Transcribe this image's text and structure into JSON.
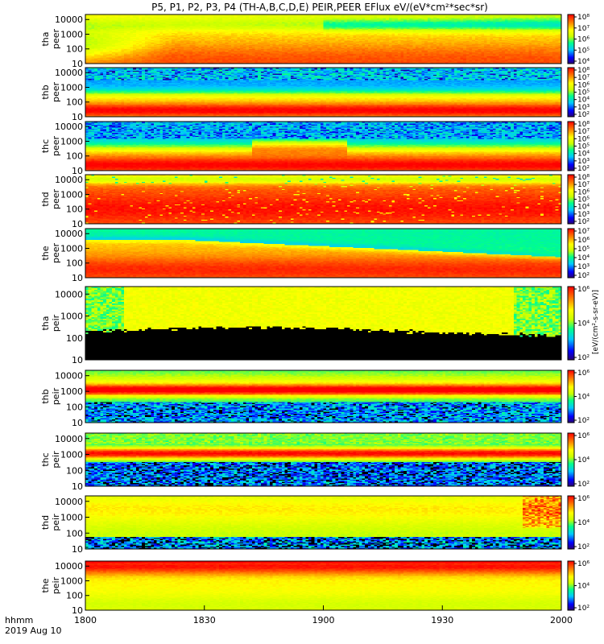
{
  "chart_data": {
    "type": "heatmap",
    "title": "P5, P1, P2, P3, P4 (TH-A,B,C,D,E) PEIR,PEER EFlux eV/(eV*cm²*sec*sr)",
    "x_labels": [
      "1800",
      "1830",
      "1900",
      "1930",
      "2000"
    ],
    "corner_labels": [
      "hhmm",
      "2019 Aug 10"
    ],
    "colorbar_unit": "[eV/(cm²-s-sr-eV)]",
    "y_ticks": [
      "10",
      "100",
      "1000",
      "10000"
    ],
    "panels": [
      {
        "name_lines": [
          "tha",
          "peer"
        ],
        "colorbar_ticks": [
          "10⁴",
          "10⁵",
          "10⁶",
          "10⁷",
          "10⁸"
        ]
      },
      {
        "name_lines": [
          "thb",
          "peer"
        ],
        "colorbar_ticks": [
          "10²",
          "10³",
          "10⁴",
          "10⁵",
          "10⁶",
          "10⁷",
          "10⁸"
        ]
      },
      {
        "name_lines": [
          "thc",
          "peer"
        ],
        "colorbar_ticks": [
          "10²",
          "10³",
          "10⁴",
          "10⁵",
          "10⁶",
          "10⁷",
          "10⁸"
        ]
      },
      {
        "name_lines": [
          "thd",
          "peer"
        ],
        "colorbar_ticks": [
          "10²",
          "10³",
          "10⁴",
          "10⁵",
          "10⁶",
          "10⁷",
          "10⁸"
        ]
      },
      {
        "name_lines": [
          "the",
          "peer"
        ],
        "colorbar_ticks": [
          "10²",
          "10³",
          "10⁴",
          "10⁵",
          "10⁶",
          "10⁷"
        ]
      },
      {
        "name_lines": [
          "tha",
          "peir"
        ],
        "colorbar_ticks": [
          "10²",
          "10⁴",
          "10⁶"
        ]
      },
      {
        "name_lines": [
          "thb",
          "peir"
        ],
        "colorbar_ticks": [
          "10²",
          "10⁴",
          "10⁶"
        ]
      },
      {
        "name_lines": [
          "thc",
          "peir"
        ],
        "colorbar_ticks": [
          "10²",
          "10⁴",
          "10⁶"
        ]
      },
      {
        "name_lines": [
          "thd",
          "peir"
        ],
        "colorbar_ticks": [
          "10²",
          "10⁴",
          "10⁶"
        ]
      },
      {
        "name_lines": [
          "the",
          "peir"
        ],
        "colorbar_ticks": [
          "10²",
          "10⁴",
          "10⁶"
        ]
      }
    ]
  }
}
